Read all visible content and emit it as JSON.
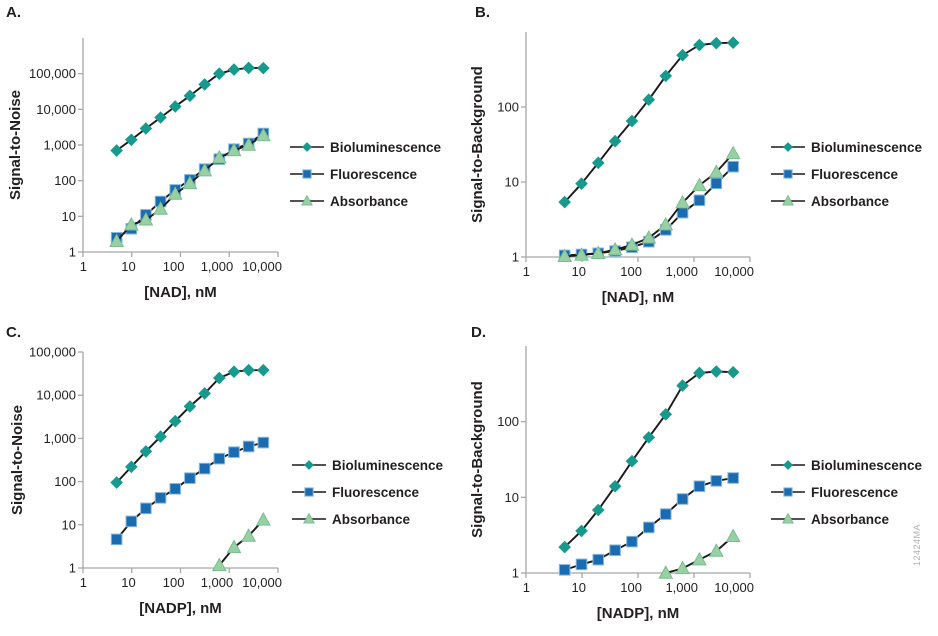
{
  "figure": {
    "watermark": "12424MA",
    "colors": {
      "bioluminescence": "#169a8e",
      "fluorescence": "#1b6bb0",
      "fluorescence_edge": "#86b7de",
      "absorbance": "#98d0a4",
      "absorbance_edge": "#79bd90",
      "line": "#1a1a1a",
      "axis": "#a8a8a8",
      "text": "#231f20",
      "watermark_gray": "#b2b2b2"
    }
  },
  "chart_data": [
    {
      "panel": "A.",
      "type": "line",
      "xscale": "log",
      "yscale": "log",
      "xlabel": "[NAD], nM",
      "ylabel": "Signal-to-Noise",
      "xlim": [
        1,
        10000
      ],
      "ylim": [
        1,
        1000000
      ],
      "grid": false,
      "legend_position": "right",
      "series": [
        {
          "name": "Bioluminescence",
          "marker": "diamond",
          "x": [
            4.9,
            9.8,
            19.5,
            39,
            78,
            156,
            313,
            625,
            1250,
            2500,
            5000
          ],
          "y": [
            700,
            1400,
            2900,
            5900,
            12000,
            24000,
            50000,
            100000,
            130000,
            145000,
            143000
          ]
        },
        {
          "name": "Fluorescence",
          "marker": "square",
          "x": [
            4.9,
            9.8,
            19.5,
            39,
            78,
            156,
            313,
            625,
            1250,
            2500,
            5000
          ],
          "y": [
            2.5,
            4.5,
            11,
            26,
            55,
            105,
            210,
            400,
            760,
            1100,
            2100
          ]
        },
        {
          "name": "Absorbance",
          "marker": "triangle",
          "x": [
            4.9,
            9.8,
            19.5,
            39,
            78,
            156,
            313,
            625,
            1250,
            2500,
            5000
          ],
          "y": [
            2.0,
            5.8,
            8,
            16,
            42,
            84,
            190,
            440,
            700,
            1000,
            1850
          ]
        }
      ]
    },
    {
      "panel": "B.",
      "type": "line",
      "xscale": "log",
      "yscale": "log",
      "xlabel": "[NAD], nM",
      "ylabel": "Signal-to-Background",
      "xlim": [
        1,
        10000
      ],
      "ylim": [
        1,
        1000
      ],
      "grid": false,
      "legend_position": "right",
      "series": [
        {
          "name": "Bioluminescence",
          "marker": "diamond",
          "x": [
            4.9,
            9.8,
            19.5,
            39,
            78,
            156,
            313,
            625,
            1250,
            2500,
            5000
          ],
          "y": [
            5.4,
            9.5,
            18,
            35,
            65,
            125,
            260,
            490,
            670,
            710,
            720
          ]
        },
        {
          "name": "Fluorescence",
          "marker": "square",
          "x": [
            4.9,
            9.8,
            19.5,
            39,
            78,
            156,
            313,
            625,
            1250,
            2500,
            5000
          ],
          "y": [
            1.05,
            1.08,
            1.12,
            1.2,
            1.35,
            1.6,
            2.3,
            3.9,
            5.7,
            9.6,
            16
          ]
        },
        {
          "name": "Absorbance",
          "marker": "triangle",
          "x": [
            4.9,
            9.8,
            19.5,
            39,
            78,
            156,
            313,
            625,
            1250,
            2500,
            5000
          ],
          "y": [
            1.02,
            1.06,
            1.12,
            1.25,
            1.45,
            1.8,
            2.7,
            5.3,
            9.0,
            13.5,
            24
          ]
        }
      ]
    },
    {
      "panel": "C.",
      "type": "line",
      "xscale": "log",
      "yscale": "log",
      "xlabel": "[NADP], nM",
      "ylabel": "Signal-to-Noise",
      "xlim": [
        1,
        10000
      ],
      "ylim": [
        1,
        100000
      ],
      "grid": false,
      "legend_position": "right",
      "series": [
        {
          "name": "Bioluminescence",
          "marker": "diamond",
          "x": [
            4.9,
            9.8,
            19.5,
            39,
            78,
            156,
            313,
            625,
            1250,
            2500,
            5000
          ],
          "y": [
            95,
            220,
            500,
            1100,
            2500,
            5500,
            11000,
            25000,
            35000,
            38000,
            38000
          ]
        },
        {
          "name": "Fluorescence",
          "marker": "square",
          "x": [
            4.9,
            9.8,
            19.5,
            39,
            78,
            156,
            313,
            625,
            1250,
            2500,
            5000
          ],
          "y": [
            4.6,
            12,
            24,
            42,
            68,
            120,
            200,
            340,
            480,
            650,
            800
          ]
        },
        {
          "name": "Absorbance",
          "marker": "triangle",
          "x": [
            625,
            1250,
            2500,
            5000
          ],
          "y": [
            1.15,
            3.0,
            5.5,
            13
          ]
        }
      ]
    },
    {
      "panel": "D.",
      "type": "line",
      "xscale": "log",
      "yscale": "log",
      "xlabel": "[NADP], nM",
      "ylabel": "Signal-to-Background",
      "xlim": [
        1,
        10000
      ],
      "ylim": [
        1,
        1000
      ],
      "grid": false,
      "legend_position": "right",
      "series": [
        {
          "name": "Bioluminescence",
          "marker": "diamond",
          "x": [
            4.9,
            9.8,
            19.5,
            39,
            78,
            156,
            313,
            625,
            1250,
            2500,
            5000
          ],
          "y": [
            2.2,
            3.6,
            6.8,
            14,
            30,
            62,
            125,
            300,
            440,
            460,
            450
          ]
        },
        {
          "name": "Fluorescence",
          "marker": "square",
          "x": [
            4.9,
            9.8,
            19.5,
            39,
            78,
            156,
            313,
            625,
            1250,
            2500,
            5000
          ],
          "y": [
            1.1,
            1.3,
            1.5,
            2.0,
            2.6,
            4.0,
            6.0,
            9.5,
            14,
            16.5,
            18
          ]
        },
        {
          "name": "Absorbance",
          "marker": "triangle",
          "x": [
            313,
            625,
            1250,
            2500,
            5000
          ],
          "y": [
            1.0,
            1.15,
            1.5,
            1.95,
            3.05
          ]
        }
      ]
    }
  ]
}
